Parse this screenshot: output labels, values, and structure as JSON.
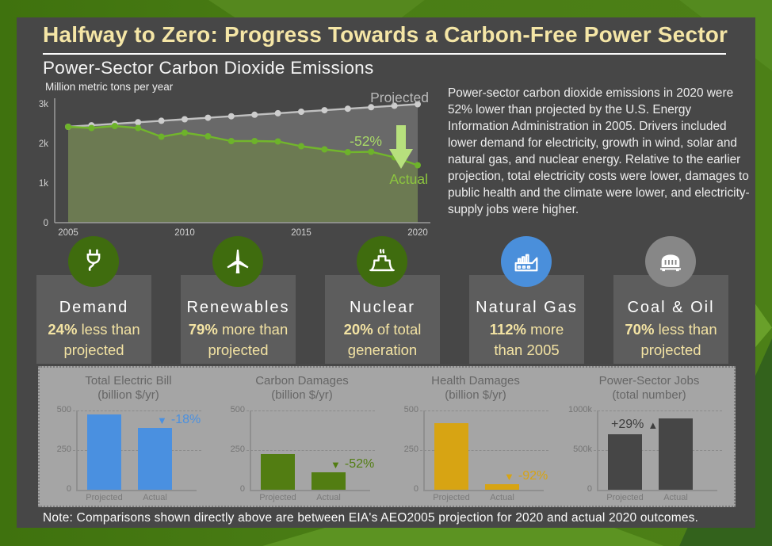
{
  "header": {
    "title": "Halfway to Zero: Progress Towards a Carbon-Free Power Sector"
  },
  "emissions": {
    "section_title": "Power-Sector Carbon Dioxide Emissions",
    "unit_label": "Million metric tons per year"
  },
  "description": "Power-sector carbon dioxide emissions in 2020 were 52% lower than projected by the U.S. Energy Information Administration in 2005. Drivers included lower demand for electricity, growth in wind, solar and natural gas, and nuclear energy. Relative to the earlier projection, total electricity costs were lower, damages to public health and the climate were lower, and electricity-supply jobs were higher.",
  "stats": [
    {
      "icon": "plug-icon",
      "circle_color": "#3f6c0e",
      "title": "Demand",
      "value": "24%",
      "label": "less than\nprojected"
    },
    {
      "icon": "wind-turbine-icon",
      "circle_color": "#3f6c0e",
      "title": "Renewables",
      "value": "79%",
      "label": "more than\nprojected"
    },
    {
      "icon": "nuclear-plant-icon",
      "circle_color": "#3f6c0e",
      "title": "Nuclear",
      "value": "20%",
      "label": "of total\ngeneration"
    },
    {
      "icon": "factory-icon",
      "circle_color": "#4a8fdb",
      "title": "Natural Gas",
      "value": "112%",
      "label": "more\nthan 2005"
    },
    {
      "icon": "coal-car-icon",
      "circle_color": "#878787",
      "title": "Coal & Oil",
      "value": "70%",
      "label": "less than\nprojected"
    }
  ],
  "chart_data": [
    {
      "type": "line",
      "title": "Power-Sector Carbon Dioxide Emissions",
      "ylabel": "Million metric tons per year",
      "x": [
        2005,
        2006,
        2007,
        2008,
        2009,
        2010,
        2011,
        2012,
        2013,
        2014,
        2015,
        2016,
        2017,
        2018,
        2019,
        2020
      ],
      "xticks": [
        "2005",
        "2010",
        "2015",
        "2020"
      ],
      "ytick_labels": [
        "0",
        "1k",
        "2k",
        "3k"
      ],
      "ylim": [
        0,
        3000
      ],
      "series": [
        {
          "name": "Projected",
          "color": "#c0c0c0",
          "dot_color": "#cdcdcd",
          "values": [
            2420,
            2458,
            2496,
            2534,
            2572,
            2610,
            2648,
            2686,
            2724,
            2762,
            2800,
            2838,
            2876,
            2914,
            2952,
            2990
          ]
        },
        {
          "name": "Actual",
          "color": "#72b62c",
          "dot_color": "#6db32a",
          "values": [
            2420,
            2390,
            2440,
            2390,
            2170,
            2270,
            2180,
            2060,
            2060,
            2050,
            1930,
            1850,
            1780,
            1790,
            1650,
            1450
          ]
        }
      ],
      "delta_label": "-52%",
      "label_colors": {
        "projected": "#b9b9b9",
        "delta": "#a8d968",
        "actual": "#8dc63f",
        "arrow": "#b7e07d"
      },
      "fills": {
        "between": "#696969",
        "under": "#6c7a52"
      }
    },
    {
      "type": "bar",
      "title": "Total Electric Bill",
      "subtitle": "(billion $/yr)",
      "categories": [
        "Projected",
        "Actual"
      ],
      "values": [
        475,
        390
      ],
      "ylim": [
        0,
        500
      ],
      "yticks": [
        "0",
        "250",
        "500"
      ],
      "color": "#4a90e0",
      "change": "-18%",
      "direction": "down"
    },
    {
      "type": "bar",
      "title": "Carbon Damages",
      "subtitle": "(billion $/yr)",
      "categories": [
        "Projected",
        "Actual"
      ],
      "values": [
        225,
        108
      ],
      "ylim": [
        0,
        500
      ],
      "yticks": [
        "0",
        "250",
        "500"
      ],
      "color": "#527d12",
      "change": "-52%",
      "direction": "down"
    },
    {
      "type": "bar",
      "title": "Health Damages",
      "subtitle": "(billion $/yr)",
      "categories": [
        "Projected",
        "Actual"
      ],
      "values": [
        420,
        33
      ],
      "ylim": [
        0,
        500
      ],
      "yticks": [
        "0",
        "250",
        "500"
      ],
      "color": "#d7a413",
      "change": "-92%",
      "direction": "down"
    },
    {
      "type": "bar",
      "title": "Power-Sector Jobs",
      "subtitle": "(total number)",
      "categories": [
        "Projected",
        "Actual"
      ],
      "values": [
        700,
        905
      ],
      "ylim": [
        0,
        1000
      ],
      "yticks": [
        "0",
        "500k",
        "1000k"
      ],
      "color": "#464646",
      "ann_color": "#3e3e3e",
      "change": "+29%",
      "direction": "up"
    }
  ],
  "note": "Note: Comparisons shown directly above are between EIA's AEO2005 projection for 2020 and actual 2020 outcomes.",
  "colors": {
    "accent_yellow": "#f5e6a6",
    "panel_bg": "#474747",
    "card_bg": "#5d5d5d",
    "light_panel_bg": "#a5a5a5",
    "border_green": "#4a7d15"
  }
}
